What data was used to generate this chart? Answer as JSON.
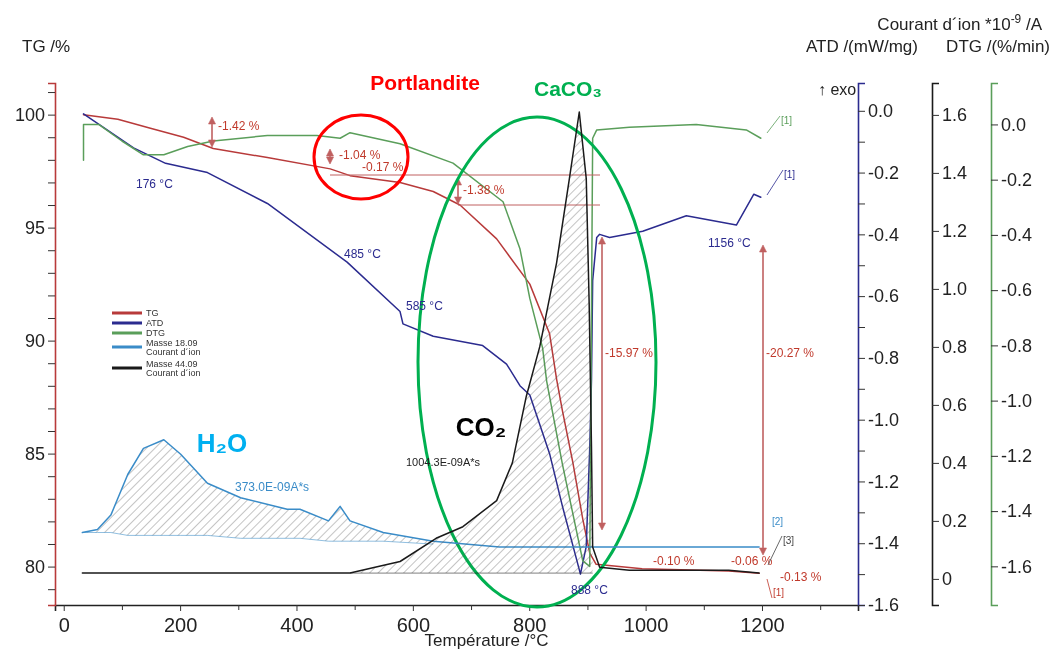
{
  "chart_data": [
    {
      "type": "line",
      "xlabel": "Température /°C",
      "ylabel": "TG /%",
      "y2label": "ATD /(mW/mg)",
      "y3label": "DTG /(%/min)",
      "xlim": [
        -15,
        1365
      ],
      "xticks": [
        0,
        {
          "value": 100,
          "label": null
        },
        200,
        {
          "value": 300,
          "label": null
        },
        400,
        {
          "value": 500,
          "label": null
        },
        600,
        {
          "value": 700,
          "label": null
        },
        800,
        {
          "value": 900,
          "label": null
        },
        1000,
        {
          "value": 1100,
          "label": null
        },
        1200,
        {
          "value": 1300,
          "label": null
        }
      ],
      "ylim": [
        78.3,
        101.4
      ],
      "yticks": [
        {
          "value": 79,
          "label": null
        },
        80,
        {
          "value": 81,
          "label": null
        },
        {
          "value": 82,
          "label": null
        },
        {
          "value": 83,
          "label": null
        },
        {
          "value": 84,
          "label": null
        },
        85,
        {
          "value": 86,
          "label": null
        },
        {
          "value": 87,
          "label": null
        },
        {
          "value": 88,
          "label": null
        },
        {
          "value": 89,
          "label": null
        },
        90,
        {
          "value": 91,
          "label": null
        },
        {
          "value": 92,
          "label": null
        },
        {
          "value": 93,
          "label": null
        },
        {
          "value": 94,
          "label": null
        },
        95,
        {
          "value": 96,
          "label": null
        },
        {
          "value": 97,
          "label": null
        },
        {
          "value": 98,
          "label": null
        },
        {
          "value": 99,
          "label": null
        },
        100,
        {
          "value": 101,
          "label": null
        }
      ],
      "y2lim": [
        -1.6,
        0.09
      ],
      "y2ticks": [
        -1.6,
        {
          "value": -1.5,
          "label": null
        },
        -1.4,
        {
          "value": -1.3,
          "label": null
        },
        -1.2,
        {
          "value": -1.1,
          "label": null
        },
        {
          "value": -1.0,
          "label": "-1.0"
        },
        {
          "value": -0.9,
          "label": null
        },
        -0.8,
        {
          "value": -0.7,
          "label": null
        },
        -0.6,
        {
          "value": -0.5,
          "label": null
        },
        -0.4,
        {
          "value": -0.3,
          "label": null
        },
        -0.2,
        {
          "value": -0.1,
          "label": null
        },
        {
          "value": 0,
          "label": "0.0"
        }
      ],
      "y3lim": [
        -1.74,
        0.15
      ],
      "y3ticks": [
        -1.6,
        -1.4,
        -1.2,
        {
          "value": -1.0,
          "label": "-1.0"
        },
        -0.8,
        -0.6,
        -0.4,
        -0.2,
        {
          "value": 0,
          "label": "0.0"
        }
      ],
      "legend": "left",
      "series": [
        {
          "name": "TG",
          "color": "#b83a3a",
          "x": [
            34,
            93,
            149,
            206,
            257,
            350,
            458,
            492,
            578,
            635,
            681,
            744,
            801,
            835,
            847,
            857,
            875,
            892,
            904,
            915,
            994,
            1143,
            1195
          ],
          "values": [
            100,
            99.8,
            99.4,
            99.0,
            98.5,
            98.1,
            97.6,
            97.3,
            97.0,
            96.6,
            96.0,
            94.5,
            92.5,
            90.3,
            88.3,
            86.9,
            84.6,
            82.1,
            80.6,
            80.1,
            79.9,
            79.8,
            79.7
          ]
        },
        {
          "name": "ATD",
          "color": "#2b2b8f",
          "axis": "y2",
          "x": [
            34,
            120,
            175,
            247,
            350,
            487,
            578,
            583,
            635,
            720,
            761,
            784,
            801,
            835,
            857,
            881,
            888,
            898,
            904,
            907,
            909,
            916,
            921,
            938,
            995,
            1070,
            1156,
            1186,
            1198
          ],
          "values": [
            -0.01,
            -0.12,
            -0.17,
            -0.2,
            -0.3,
            -0.49,
            -0.65,
            -0.69,
            -0.73,
            -0.76,
            -0.82,
            -0.89,
            -0.92,
            -1.11,
            -1.28,
            -1.45,
            -1.5,
            -1.41,
            -1.09,
            -0.87,
            -0.55,
            -0.41,
            -0.4,
            -0.41,
            -0.39,
            -0.34,
            -0.37,
            -0.27,
            -0.28
          ]
        },
        {
          "name": "DTG",
          "color": "#5a9e5a",
          "axis": "y3",
          "x": [
            34,
            34,
            60,
            100,
            137,
            172,
            213,
            257,
            350,
            435,
            475,
            492,
            578,
            669,
            755,
            784,
            801,
            823,
            830,
            857,
            881,
            892,
            904,
            909,
            916,
            972,
            1087,
            1173,
            1198
          ],
          "values": [
            -0.13,
            0.0,
            0.0,
            -0.06,
            -0.11,
            -0.11,
            -0.08,
            -0.06,
            -0.04,
            -0.04,
            -0.05,
            -0.03,
            -0.07,
            -0.14,
            -0.28,
            -0.45,
            -0.63,
            -0.81,
            -0.93,
            -1.23,
            -1.47,
            -1.58,
            -1.6,
            -0.05,
            -0.02,
            -0.01,
            0.0,
            -0.02,
            -0.05
          ]
        }
      ],
      "annotations": [
        "-1.42 %",
        "-1.04 %",
        "-0.17 %",
        "-1.38 %",
        "-15.97 %",
        "-20.27 %",
        "-0.10 %",
        "-0.06 %",
        "-0.13 %",
        "176 °C",
        "485 °C",
        "585 °C",
        "888 °C",
        "1156 °C",
        "373.0E-09A*s",
        "1004.3E-09A*s",
        "[1]",
        "[1]",
        "[2]",
        "[3]",
        "[1]",
        "↑ exo",
        "Portlandite",
        "CaCO₃",
        "H₂O",
        "CO₂"
      ]
    },
    {
      "type": "line",
      "ylabel": "Courant d´ion *10$^{-9}$ /A",
      "xlim": [
        -15,
        1365
      ],
      "ylim": [
        -0.09,
        1.71
      ],
      "yticks": [
        0,
        0.2,
        0.4,
        0.6,
        0.8,
        {
          "value": 1.0,
          "label": "1.0"
        },
        1.2,
        1.4,
        1.6
      ],
      "tick_labels": "y",
      "legend": "left",
      "series": [
        {
          "name": "Masse 18.09 Courant d´ion",
          "color": "#3a8cc8",
          "x": [
            32,
            58,
            81,
            110,
            137,
            172,
            201,
            247,
            304,
            384,
            406,
            455,
            475,
            492,
            549,
            635,
            749,
            915,
            1195
          ],
          "values": [
            0.16,
            0.17,
            0.22,
            0.36,
            0.45,
            0.48,
            0.43,
            0.33,
            0.28,
            0.24,
            0.24,
            0.2,
            0.25,
            0.2,
            0.16,
            0.13,
            0.11,
            0.11,
            0.11
          ],
          "lower": [
            0.16,
            0.16,
            0.16,
            0.15,
            0.15,
            0.15,
            0.15,
            0.15,
            0.14,
            0.14,
            0.14,
            0.13,
            0.13,
            0.13,
            0.13,
            0.12,
            null,
            null,
            null
          ],
          "upper": [
            0.16,
            0.17,
            0.22,
            0.36,
            0.45,
            0.48,
            0.43,
            0.33,
            0.28,
            0.24,
            0.24,
            0.2,
            0.25,
            0.2,
            0.16,
            0.13,
            null,
            null,
            null
          ]
        },
        {
          "name": "Masse 44.09 Courant d´ion",
          "color": "#1a1a1a",
          "x": [
            32,
            463,
            492,
            578,
            640,
            686,
            744,
            771,
            795,
            818,
            847,
            869,
            886,
            898,
            903,
            907,
            909,
            921,
            972,
            1143,
            1195
          ],
          "values": [
            0.02,
            0.02,
            0.02,
            0.06,
            0.14,
            0.18,
            0.27,
            0.4,
            0.63,
            0.8,
            1.09,
            1.38,
            1.61,
            1.38,
            0.95,
            0.45,
            0.11,
            0.04,
            0.03,
            0.03,
            0.02
          ],
          "lower": [
            null,
            null,
            0.02,
            0.02,
            0.02,
            0.02,
            0.02,
            0.02,
            0.02,
            0.02,
            0.02,
            0.02,
            0.02,
            0.02,
            0.02,
            0.02,
            0.02,
            null,
            null,
            null,
            null
          ],
          "upper": [
            null,
            null,
            0.02,
            0.06,
            0.14,
            0.18,
            0.27,
            0.4,
            0.63,
            0.8,
            1.09,
            1.38,
            1.61,
            1.38,
            0.95,
            0.45,
            0.11,
            null,
            null,
            null,
            null
          ]
        }
      ]
    }
  ]
}
